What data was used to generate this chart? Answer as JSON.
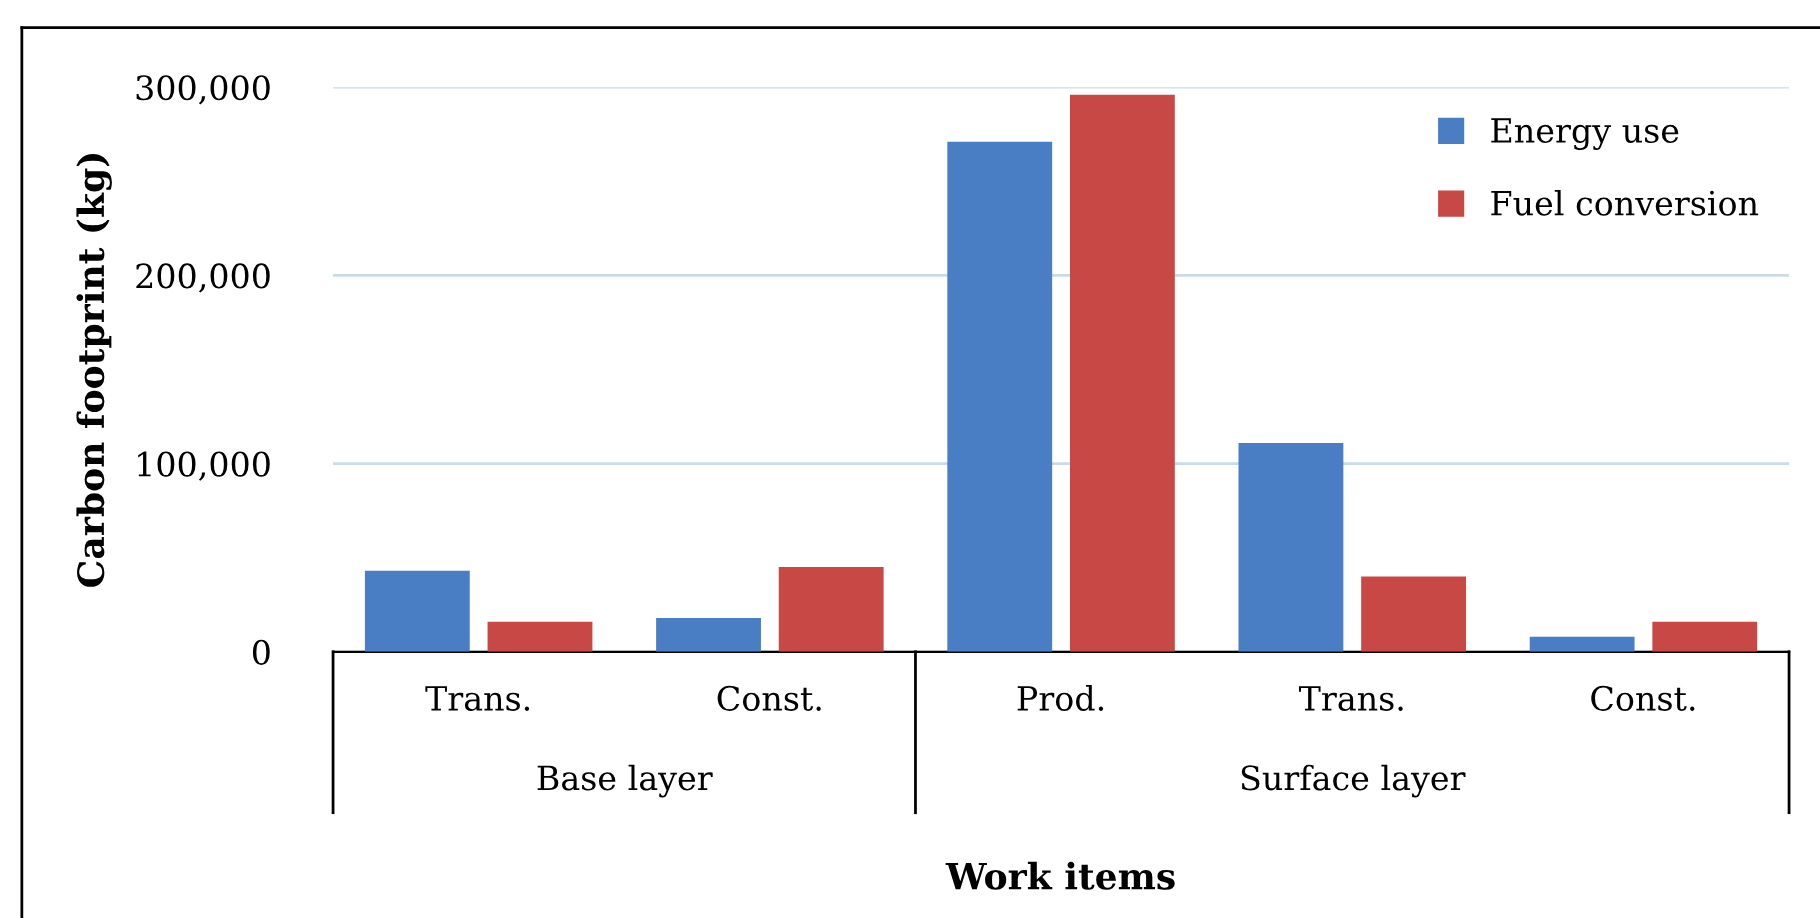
{
  "chart_data": {
    "type": "bar",
    "xlabel": "Work items",
    "ylabel": "Carbon footprint (kg)",
    "categories": [
      "Trans.",
      "Const.",
      "Prod.",
      "Trans.",
      "Const."
    ],
    "series": [
      {
        "name": "Energy use",
        "color": "#4a7ec4",
        "values": [
          43000,
          18000,
          271000,
          111000,
          8000
        ]
      },
      {
        "name": "Fuel conversion",
        "color": "#c84845",
        "values": [
          16000,
          45000,
          296000,
          40000,
          16000
        ]
      }
    ],
    "annotations": [
      "Base layer",
      "Surface layer"
    ],
    "ylim": [
      0,
      300000
    ],
    "yticks": [
      {
        "value": 0,
        "label": "0"
      },
      {
        "value": 100000,
        "label": "100,000"
      },
      {
        "value": 200000,
        "label": "200,000"
      },
      {
        "value": 300000,
        "label": "300,000"
      }
    ],
    "grid": "y",
    "legend": "top right"
  }
}
